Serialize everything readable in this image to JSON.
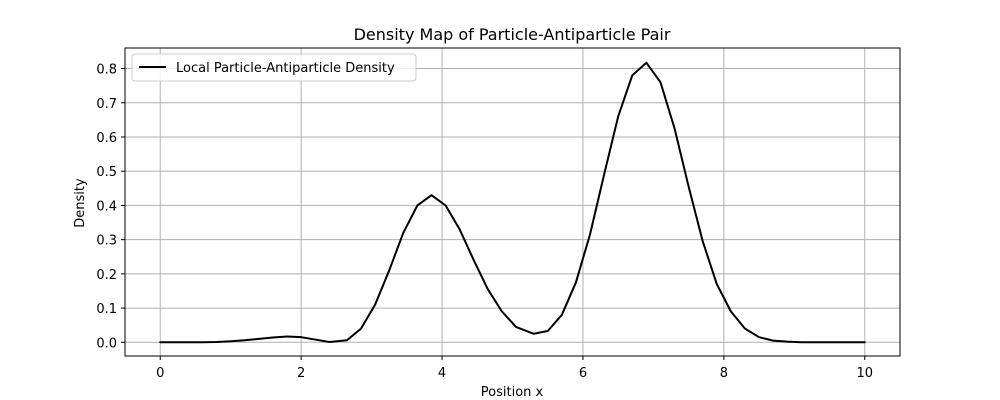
{
  "chart_data": {
    "type": "line",
    "title": "Density Map of Particle-Antiparticle Pair",
    "xlabel": "Position x",
    "ylabel": "Density",
    "xlim": [
      -0.5,
      10.5
    ],
    "ylim": [
      -0.04,
      0.86
    ],
    "xticks": [
      0,
      2,
      4,
      6,
      8,
      10
    ],
    "yticks": [
      0.0,
      0.1,
      0.2,
      0.3,
      0.4,
      0.5,
      0.6,
      0.7,
      0.8
    ],
    "xtick_labels": [
      "0",
      "2",
      "4",
      "6",
      "8",
      "10"
    ],
    "ytick_labels": [
      "0.0",
      "0.1",
      "0.2",
      "0.3",
      "0.4",
      "0.5",
      "0.6",
      "0.7",
      "0.8"
    ],
    "grid": true,
    "legend_position": "top-left",
    "series": [
      {
        "name": "Local Particle-Antiparticle Density",
        "color": "#000000",
        "x": [
          0.0,
          0.2,
          0.4,
          0.6,
          0.8,
          1.0,
          1.2,
          1.4,
          1.6,
          1.8,
          2.0,
          2.2,
          2.4,
          2.65,
          2.85,
          3.05,
          3.25,
          3.45,
          3.65,
          3.85,
          4.05,
          4.25,
          4.45,
          4.65,
          4.85,
          5.05,
          5.3,
          5.5,
          5.7,
          5.9,
          6.1,
          6.3,
          6.5,
          6.7,
          6.9,
          7.1,
          7.3,
          7.5,
          7.7,
          7.9,
          8.1,
          8.3,
          8.5,
          8.7,
          8.9,
          9.1,
          9.3,
          9.5,
          9.7,
          10.0
        ],
        "y": [
          0.0,
          0.0,
          0.0,
          0.0,
          0.001,
          0.003,
          0.006,
          0.01,
          0.014,
          0.017,
          0.015,
          0.008,
          0.001,
          0.006,
          0.04,
          0.11,
          0.21,
          0.32,
          0.4,
          0.43,
          0.4,
          0.33,
          0.24,
          0.155,
          0.09,
          0.045,
          0.025,
          0.033,
          0.08,
          0.175,
          0.315,
          0.49,
          0.66,
          0.78,
          0.817,
          0.76,
          0.625,
          0.455,
          0.295,
          0.17,
          0.09,
          0.04,
          0.015,
          0.005,
          0.002,
          0.0,
          0.0,
          0.0,
          0.0,
          0.0
        ]
      }
    ]
  }
}
